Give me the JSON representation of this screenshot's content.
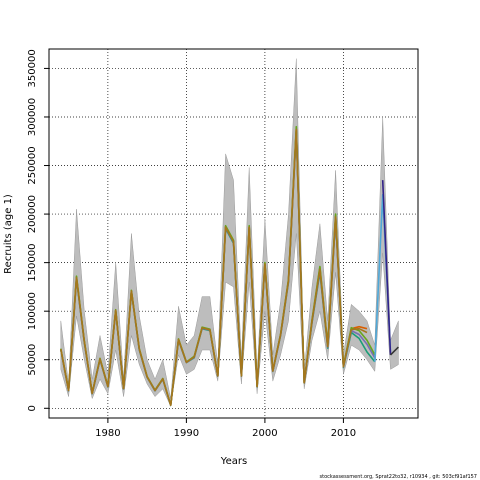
{
  "chart_data": {
    "type": "line",
    "title": "",
    "xlabel": "Years",
    "ylabel": "Recruits (age 1)",
    "xlim": [
      1972.5,
      2019.5
    ],
    "ylim": [
      -10000,
      370000
    ],
    "xticks": [
      1980,
      1990,
      2000,
      2010
    ],
    "yticks": [
      0,
      50000,
      100000,
      150000,
      200000,
      250000,
      300000,
      350000
    ],
    "grid": "dotted",
    "legend": "none",
    "confidence_band": {
      "years": [
        1974,
        1975,
        1976,
        1977,
        1978,
        1979,
        1980,
        1981,
        1982,
        1983,
        1984,
        1985,
        1986,
        1987,
        1988,
        1989,
        1990,
        1991,
        1992,
        1993,
        1994,
        1995,
        1996,
        1997,
        1998,
        1999,
        2000,
        2001,
        2002,
        2003,
        2004,
        2005,
        2006,
        2007,
        2008,
        2009,
        2010,
        2011,
        2012,
        2013,
        2014,
        2015,
        2016,
        2017
      ],
      "lower": [
        40000,
        12000,
        95000,
        50000,
        10000,
        30000,
        15000,
        60000,
        12000,
        75000,
        45000,
        25000,
        12000,
        20000,
        2000,
        55000,
        35000,
        40000,
        60000,
        60000,
        28000,
        130000,
        125000,
        25000,
        130000,
        15000,
        100000,
        28000,
        55000,
        90000,
        180000,
        20000,
        70000,
        100000,
        50000,
        140000,
        35000,
        65000,
        60000,
        50000,
        38000,
        160000,
        40000,
        45000
      ],
      "upper": [
        90000,
        25000,
        205000,
        100000,
        30000,
        75000,
        35000,
        150000,
        30000,
        180000,
        95000,
        50000,
        30000,
        50000,
        10000,
        105000,
        65000,
        75000,
        115000,
        115000,
        45000,
        262000,
        235000,
        50000,
        248000,
        35000,
        195000,
        55000,
        110000,
        200000,
        360000,
        38000,
        125000,
        190000,
        90000,
        245000,
        55000,
        107000,
        100000,
        90000,
        65000,
        300000,
        70000,
        90000
      ]
    },
    "series": [
      {
        "color": "#1B9E77",
        "values": [
          60000,
          18000,
          133000,
          68000,
          15000,
          50000,
          22000,
          100000,
          20000,
          120000,
          60000,
          32000,
          18000,
          30000,
          3000,
          70000,
          47000,
          52000,
          82000,
          80000,
          33000,
          185000,
          170000,
          33000,
          185000,
          22000,
          147000,
          38000,
          75000,
          130000,
          285000,
          26000,
          88000,
          140000,
          62000,
          195000,
          42000,
          78000,
          72000,
          58000,
          48000
        ]
      },
      {
        "color": "#D95F02",
        "values": [
          61000,
          18500,
          135000,
          69000,
          15500,
          51000,
          22500,
          101000,
          20500,
          121000,
          61000,
          32500,
          18500,
          30500,
          3200,
          71000,
          47500,
          53000,
          83000,
          81000,
          33500,
          187000,
          172000,
          33500,
          187000,
          22500,
          149000,
          38500,
          76000,
          132000,
          288000,
          26500,
          90000,
          145000,
          64000,
          198000,
          43000,
          82000,
          84000,
          82000
        ]
      },
      {
        "color": "#7570B3",
        "values": [
          60500,
          18200,
          134000,
          68500,
          15200,
          50500,
          22200,
          100500,
          20200,
          120500,
          60500,
          32200,
          18200,
          30200,
          3100,
          70500,
          47200,
          52500,
          82500,
          80500,
          33200,
          186000,
          171000,
          33200,
          186000,
          22200,
          148000,
          38200,
          75500,
          131000,
          286000,
          26200,
          89000,
          142000,
          63000,
          196000,
          42500,
          80000,
          76000,
          66000,
          52000
        ]
      },
      {
        "color": "#66A61E",
        "values": [
          61500,
          18700,
          136000,
          69500,
          15700,
          51500,
          22700,
          101500,
          20700,
          121500,
          61500,
          32700,
          18700,
          30700,
          3300,
          71500,
          47700,
          53500,
          83500,
          81500,
          33700,
          188000,
          173000,
          33700,
          188000,
          22700,
          150000,
          38700,
          76500,
          133000,
          290000,
          26700,
          91000,
          146000,
          65000,
          200000,
          43500,
          83000,
          80000,
          70000,
          55000
        ]
      },
      {
        "color": "#A6761D",
        "values": [
          60800,
          18300,
          134500,
          68800,
          15300,
          50800,
          22300,
          100800,
          20300,
          120800,
          60800,
          32300,
          18300,
          30300,
          3150,
          70800,
          47300,
          52800,
          82800,
          80800,
          33300,
          186500,
          171500,
          33300,
          186500,
          22300,
          148500,
          38300,
          75800,
          131500,
          287000,
          26300,
          89500,
          143000,
          63500,
          197000,
          42800,
          81000,
          82000,
          78000
        ]
      },
      {
        "color": "#4FA8D8",
        "values": [
          null,
          null,
          null,
          null,
          null,
          null,
          null,
          null,
          null,
          null,
          null,
          null,
          null,
          null,
          null,
          null,
          null,
          null,
          null,
          null,
          null,
          null,
          null,
          null,
          null,
          null,
          null,
          null,
          null,
          null,
          null,
          null,
          null,
          null,
          null,
          null,
          null,
          null,
          null,
          null,
          48000,
          220000,
          58000
        ]
      },
      {
        "color": "#332288",
        "values": [
          null,
          null,
          null,
          null,
          null,
          null,
          null,
          null,
          null,
          null,
          null,
          null,
          null,
          null,
          null,
          null,
          null,
          null,
          null,
          null,
          null,
          null,
          null,
          null,
          null,
          null,
          null,
          null,
          null,
          null,
          null,
          null,
          null,
          null,
          null,
          null,
          null,
          null,
          null,
          null,
          null,
          235000,
          55000
        ]
      },
      {
        "color": "#333333",
        "values": [
          null,
          null,
          null,
          null,
          null,
          null,
          null,
          null,
          null,
          null,
          null,
          null,
          null,
          null,
          null,
          null,
          null,
          null,
          null,
          null,
          null,
          null,
          null,
          null,
          null,
          null,
          null,
          null,
          null,
          null,
          null,
          null,
          null,
          null,
          null,
          null,
          null,
          null,
          null,
          null,
          null,
          null,
          55000,
          63000
        ]
      }
    ]
  },
  "footer": "stockassessment.org, Sprat22to32, r10934 , git: 503cf91af157"
}
